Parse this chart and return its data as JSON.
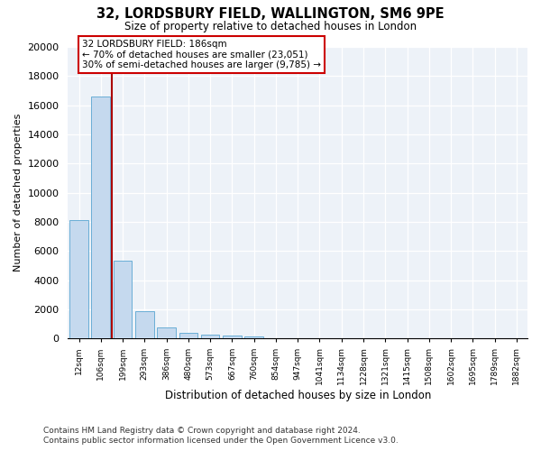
{
  "title1": "32, LORDSBURY FIELD, WALLINGTON, SM6 9PE",
  "title2": "Size of property relative to detached houses in London",
  "xlabel": "Distribution of detached houses by size in London",
  "ylabel": "Number of detached properties",
  "bar_color": "#c5d9ee",
  "bar_edge_color": "#6aaed6",
  "vline_color": "#aa0000",
  "annotation_text": "32 LORDSBURY FIELD: 186sqm\n← 70% of detached houses are smaller (23,051)\n30% of semi-detached houses are larger (9,785) →",
  "annotation_box_color": "#cc0000",
  "categories": [
    "12sqm",
    "106sqm",
    "199sqm",
    "293sqm",
    "386sqm",
    "480sqm",
    "573sqm",
    "667sqm",
    "760sqm",
    "854sqm",
    "947sqm",
    "1041sqm",
    "1134sqm",
    "1228sqm",
    "1321sqm",
    "1415sqm",
    "1508sqm",
    "1602sqm",
    "1695sqm",
    "1789sqm",
    "1882sqm"
  ],
  "values": [
    8100,
    16600,
    5350,
    1900,
    750,
    380,
    280,
    200,
    160,
    0,
    0,
    0,
    0,
    0,
    0,
    0,
    0,
    0,
    0,
    0,
    0
  ],
  "ylim": [
    0,
    20000
  ],
  "yticks": [
    0,
    2000,
    4000,
    6000,
    8000,
    10000,
    12000,
    14000,
    16000,
    18000,
    20000
  ],
  "footer1": "Contains HM Land Registry data © Crown copyright and database right 2024.",
  "footer2": "Contains public sector information licensed under the Open Government Licence v3.0.",
  "plot_background": "#edf2f8"
}
